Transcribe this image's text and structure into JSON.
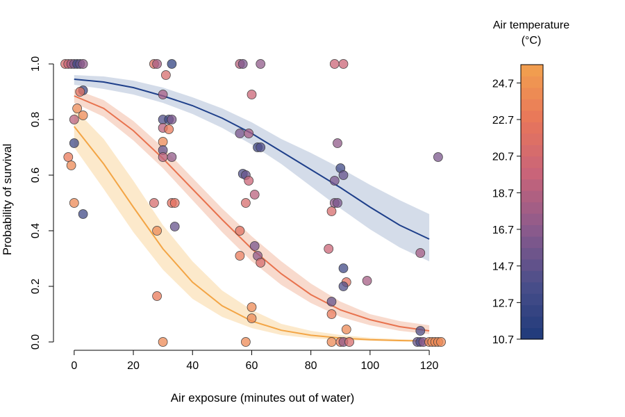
{
  "chart_data": {
    "type": "scatter",
    "title": "",
    "xlabel": "Air exposure (minutes out of water)",
    "ylabel": "Probability of survival",
    "xlim": [
      -7,
      135
    ],
    "ylim": [
      -0.03,
      1.04
    ],
    "x_ticks": [
      0,
      20,
      40,
      60,
      80,
      100,
      120
    ],
    "y_ticks": [
      0.0,
      0.2,
      0.4,
      0.6,
      0.8,
      1.0
    ],
    "x_tick_labels": [
      "0",
      "20",
      "40",
      "60",
      "80",
      "100",
      "120"
    ],
    "y_tick_labels": [
      "0.0",
      "0.2",
      "0.4",
      "0.6",
      "0.8",
      "1.0"
    ],
    "grid": false,
    "colorbar": {
      "title_line1": "Air temperature",
      "title_line2": "(°C)",
      "min": 10.7,
      "max": 25.7,
      "ticks": [
        "10.7",
        "12.7",
        "14.7",
        "16.7",
        "18.7",
        "20.7",
        "22.7",
        "24.7"
      ],
      "tick_values": [
        10.7,
        12.7,
        14.7,
        16.7,
        18.7,
        20.7,
        22.7,
        24.7
      ],
      "palette": [
        "#1e3a7a",
        "#4a4e8a",
        "#8a5a8c",
        "#c8647a",
        "#e8765a",
        "#f2a24e"
      ]
    },
    "fit_curves": [
      {
        "temperature": 11,
        "color": "#1e3f8a",
        "band_color": "#ccd6e5",
        "x": [
          0,
          10,
          20,
          30,
          40,
          50,
          60,
          70,
          80,
          90,
          100,
          110,
          120
        ],
        "y": [
          0.945,
          0.935,
          0.915,
          0.885,
          0.85,
          0.805,
          0.75,
          0.685,
          0.62,
          0.555,
          0.485,
          0.42,
          0.37
        ],
        "lower": [
          0.925,
          0.91,
          0.89,
          0.86,
          0.82,
          0.77,
          0.71,
          0.64,
          0.56,
          0.48,
          0.405,
          0.34,
          0.29
        ],
        "upper": [
          0.96,
          0.955,
          0.94,
          0.915,
          0.88,
          0.84,
          0.79,
          0.73,
          0.68,
          0.625,
          0.565,
          0.51,
          0.46
        ]
      },
      {
        "temperature": 21,
        "color": "#e8724e",
        "band_color": "#f7d3c4",
        "x": [
          0,
          10,
          20,
          30,
          40,
          50,
          60,
          70,
          80,
          90,
          100,
          110,
          120
        ],
        "y": [
          0.885,
          0.84,
          0.76,
          0.66,
          0.55,
          0.44,
          0.335,
          0.245,
          0.17,
          0.115,
          0.08,
          0.055,
          0.04
        ],
        "lower": [
          0.86,
          0.81,
          0.725,
          0.625,
          0.51,
          0.395,
          0.29,
          0.205,
          0.14,
          0.09,
          0.06,
          0.04,
          0.028
        ],
        "upper": [
          0.91,
          0.87,
          0.795,
          0.7,
          0.59,
          0.48,
          0.38,
          0.29,
          0.21,
          0.145,
          0.1,
          0.075,
          0.06
        ]
      },
      {
        "temperature": 25,
        "color": "#f3a545",
        "band_color": "#fce5c2",
        "x": [
          0,
          10,
          20,
          30,
          40,
          50,
          60,
          70,
          80,
          90,
          100,
          110,
          120
        ],
        "y": [
          0.775,
          0.64,
          0.485,
          0.335,
          0.215,
          0.13,
          0.075,
          0.042,
          0.024,
          0.014,
          0.008,
          0.005,
          0.003
        ],
        "lower": [
          0.7,
          0.55,
          0.395,
          0.26,
          0.155,
          0.09,
          0.05,
          0.025,
          0.013,
          0.007,
          0.004,
          0.002,
          0.001
        ],
        "upper": [
          0.84,
          0.73,
          0.58,
          0.42,
          0.29,
          0.185,
          0.115,
          0.065,
          0.04,
          0.025,
          0.015,
          0.01,
          0.006
        ]
      }
    ],
    "points": [
      {
        "x": -3,
        "y": 1.0,
        "t": 21
      },
      {
        "x": -2,
        "y": 1.0,
        "t": 20
      },
      {
        "x": -1,
        "y": 1.0,
        "t": 18
      },
      {
        "x": 0,
        "y": 1.0,
        "t": 16
      },
      {
        "x": 1,
        "y": 1.0,
        "t": 13
      },
      {
        "x": 2,
        "y": 1.0,
        "t": 15
      },
      {
        "x": 3,
        "y": 1.0,
        "t": 17
      },
      {
        "x": 27,
        "y": 1.0,
        "t": 22
      },
      {
        "x": 28,
        "y": 1.0,
        "t": 18
      },
      {
        "x": 33,
        "y": 1.0,
        "t": 12
      },
      {
        "x": 56,
        "y": 1.0,
        "t": 19
      },
      {
        "x": 57,
        "y": 1.0,
        "t": 16
      },
      {
        "x": 63,
        "y": 1.0,
        "t": 17
      },
      {
        "x": 88,
        "y": 1.0,
        "t": 20
      },
      {
        "x": 91,
        "y": 1.0,
        "t": 20
      },
      {
        "x": 3,
        "y": 0.905,
        "t": 13
      },
      {
        "x": 2,
        "y": 0.9,
        "t": 22
      },
      {
        "x": 1,
        "y": 0.84,
        "t": 24
      },
      {
        "x": 3,
        "y": 0.815,
        "t": 24
      },
      {
        "x": 0,
        "y": 0.8,
        "t": 19
      },
      {
        "x": 0,
        "y": 0.715,
        "t": 13
      },
      {
        "x": -2,
        "y": 0.665,
        "t": 23
      },
      {
        "x": -1,
        "y": 0.635,
        "t": 24
      },
      {
        "x": 0,
        "y": 0.5,
        "t": 24
      },
      {
        "x": 3,
        "y": 0.46,
        "t": 13
      },
      {
        "x": 31,
        "y": 0.96,
        "t": 21
      },
      {
        "x": 30,
        "y": 0.89,
        "t": 18
      },
      {
        "x": 30,
        "y": 0.8,
        "t": 14
      },
      {
        "x": 32,
        "y": 0.8,
        "t": 13
      },
      {
        "x": 33,
        "y": 0.8,
        "t": 16
      },
      {
        "x": 30,
        "y": 0.77,
        "t": 19
      },
      {
        "x": 32,
        "y": 0.765,
        "t": 23
      },
      {
        "x": 30,
        "y": 0.72,
        "t": 24
      },
      {
        "x": 30,
        "y": 0.69,
        "t": 15
      },
      {
        "x": 30,
        "y": 0.665,
        "t": 19
      },
      {
        "x": 33,
        "y": 0.665,
        "t": 17
      },
      {
        "x": 27,
        "y": 0.5,
        "t": 21
      },
      {
        "x": 33,
        "y": 0.5,
        "t": 22
      },
      {
        "x": 34,
        "y": 0.5,
        "t": 22
      },
      {
        "x": 28,
        "y": 0.4,
        "t": 24
      },
      {
        "x": 34,
        "y": 0.415,
        "t": 15
      },
      {
        "x": 28,
        "y": 0.165,
        "t": 23
      },
      {
        "x": 30,
        "y": 0.0,
        "t": 24
      },
      {
        "x": 60,
        "y": 0.89,
        "t": 20
      },
      {
        "x": 56,
        "y": 0.75,
        "t": 16
      },
      {
        "x": 59,
        "y": 0.75,
        "t": 18
      },
      {
        "x": 62,
        "y": 0.7,
        "t": 13
      },
      {
        "x": 63,
        "y": 0.7,
        "t": 14
      },
      {
        "x": 57,
        "y": 0.605,
        "t": 14
      },
      {
        "x": 58,
        "y": 0.6,
        "t": 15
      },
      {
        "x": 59,
        "y": 0.58,
        "t": 20
      },
      {
        "x": 61,
        "y": 0.53,
        "t": 19
      },
      {
        "x": 58,
        "y": 0.5,
        "t": 21
      },
      {
        "x": 56,
        "y": 0.4,
        "t": 22
      },
      {
        "x": 61,
        "y": 0.345,
        "t": 16
      },
      {
        "x": 62,
        "y": 0.31,
        "t": 17
      },
      {
        "x": 56,
        "y": 0.31,
        "t": 23
      },
      {
        "x": 63,
        "y": 0.285,
        "t": 21
      },
      {
        "x": 60,
        "y": 0.125,
        "t": 24
      },
      {
        "x": 60,
        "y": 0.085,
        "t": 24
      },
      {
        "x": 58,
        "y": 0.0,
        "t": 24
      },
      {
        "x": 89,
        "y": 0.715,
        "t": 17
      },
      {
        "x": 90,
        "y": 0.625,
        "t": 13
      },
      {
        "x": 91,
        "y": 0.6,
        "t": 15
      },
      {
        "x": 88,
        "y": 0.58,
        "t": 16
      },
      {
        "x": 88,
        "y": 0.5,
        "t": 17
      },
      {
        "x": 89,
        "y": 0.5,
        "t": 16
      },
      {
        "x": 87,
        "y": 0.47,
        "t": 21
      },
      {
        "x": 86,
        "y": 0.335,
        "t": 20
      },
      {
        "x": 91,
        "y": 0.265,
        "t": 13
      },
      {
        "x": 92,
        "y": 0.215,
        "t": 22
      },
      {
        "x": 99,
        "y": 0.22,
        "t": 18
      },
      {
        "x": 91,
        "y": 0.2,
        "t": 14
      },
      {
        "x": 87,
        "y": 0.145,
        "t": 15
      },
      {
        "x": 87,
        "y": 0.1,
        "t": 23
      },
      {
        "x": 92,
        "y": 0.045,
        "t": 24
      },
      {
        "x": 87,
        "y": 0.0,
        "t": 24
      },
      {
        "x": 90,
        "y": 0.0,
        "t": 23
      },
      {
        "x": 91,
        "y": 0.0,
        "t": 17
      },
      {
        "x": 93,
        "y": 0.0,
        "t": 21
      },
      {
        "x": 123,
        "y": 0.665,
        "t": 16
      },
      {
        "x": 117,
        "y": 0.32,
        "t": 18
      },
      {
        "x": 117,
        "y": 0.04,
        "t": 14
      },
      {
        "x": 116,
        "y": 0.0,
        "t": 15
      },
      {
        "x": 117,
        "y": 0.0,
        "t": 14
      },
      {
        "x": 118,
        "y": 0.0,
        "t": 17
      },
      {
        "x": 120,
        "y": 0.0,
        "t": 24
      },
      {
        "x": 121,
        "y": 0.0,
        "t": 24
      },
      {
        "x": 122,
        "y": 0.0,
        "t": 24
      },
      {
        "x": 123,
        "y": 0.0,
        "t": 24
      },
      {
        "x": 124,
        "y": 0.0,
        "t": 24
      }
    ]
  }
}
